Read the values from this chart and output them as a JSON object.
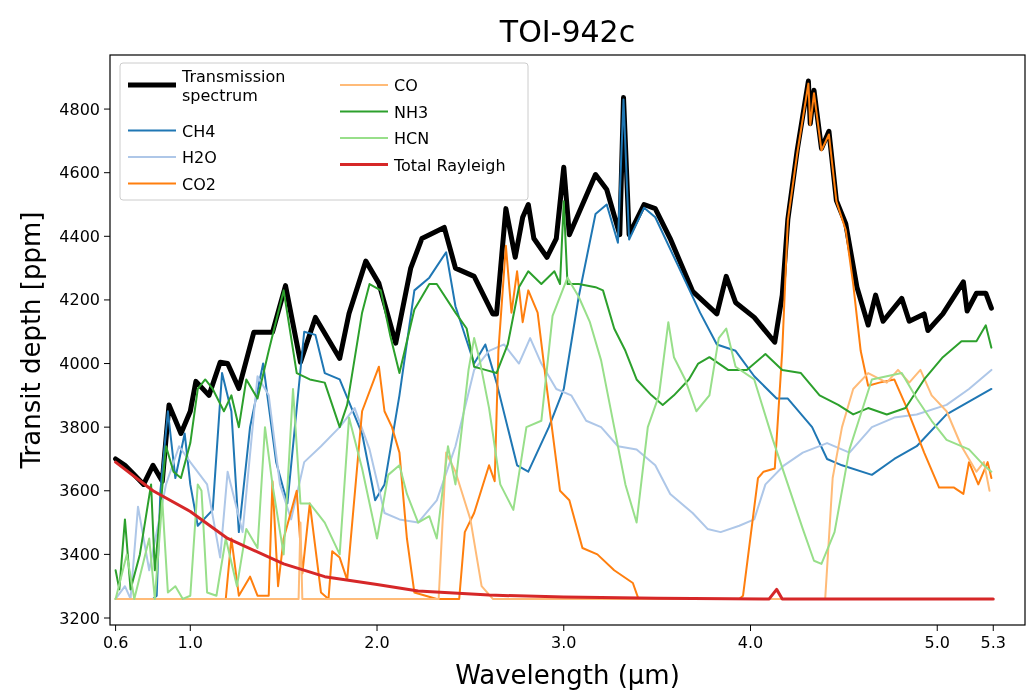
{
  "chart_data": {
    "type": "line",
    "title": "TOI-942c",
    "xlabel": "Wavelength (μm)",
    "ylabel": "Transit depth [ppm]",
    "xlim": [
      0.57,
      5.47
    ],
    "ylim": [
      3178,
      4970
    ],
    "xticks": [
      0.6,
      {
        "value": 1,
        "label": "1.0"
      },
      {
        "value": 2,
        "label": "2.0"
      },
      {
        "value": 3,
        "label": "3.0"
      },
      {
        "value": 4,
        "label": "4.0"
      },
      {
        "value": 5,
        "label": "5.0"
      },
      5.3
    ],
    "yticks": [
      3200,
      3400,
      3600,
      3800,
      4000,
      4200,
      4400,
      4600,
      4800
    ],
    "grid": false,
    "legend": "top left",
    "line_style": "solid",
    "marker": "none",
    "series": [
      {
        "name": "Transmission\nspectrum",
        "color": "#000000",
        "x": [
          0.6,
          0.65,
          0.7,
          0.75,
          0.8,
          0.85,
          0.886,
          0.95,
          1.0,
          1.03,
          1.1,
          1.16,
          1.2,
          1.26,
          1.34,
          1.44,
          1.51,
          1.59,
          1.67,
          1.8,
          1.85,
          1.94,
          2.01,
          2.1,
          2.18,
          2.24,
          2.36,
          2.42,
          2.52,
          2.62,
          2.64,
          2.69,
          2.74,
          2.78,
          2.81,
          2.84,
          2.91,
          2.96,
          3.0,
          3.03,
          3.17,
          3.23,
          3.3,
          3.32,
          3.35,
          3.43,
          3.49,
          3.57,
          3.69,
          3.82,
          3.87,
          3.92,
          4.02,
          4.13,
          4.17,
          4.2,
          4.25,
          4.31,
          4.32,
          4.34,
          4.38,
          4.42,
          4.46,
          4.51,
          4.57,
          4.63,
          4.67,
          4.71,
          4.81,
          4.85,
          4.93,
          4.95,
          5.03,
          5.14,
          5.16,
          5.21,
          5.26,
          5.29
        ],
        "values": [
          3700,
          3680,
          3650,
          3620,
          3680,
          3630,
          3870,
          3780,
          3850,
          3944,
          3900,
          4004,
          4000,
          3922,
          4098,
          4098,
          4245,
          4004,
          4145,
          4016,
          4157,
          4322,
          4252,
          4064,
          4299,
          4393,
          4428,
          4300,
          4274,
          4156,
          4156,
          4487,
          4334,
          4460,
          4500,
          4393,
          4334,
          4393,
          4617,
          4405,
          4594,
          4547,
          4405,
          4836,
          4405,
          4500,
          4487,
          4393,
          4227,
          4156,
          4274,
          4192,
          4145,
          4067,
          4215,
          4453,
          4670,
          4888,
          4754,
          4859,
          4676,
          4730,
          4512,
          4440,
          4240,
          4121,
          4215,
          4133,
          4205,
          4133,
          4156,
          4104,
          4156,
          4257,
          4165,
          4221,
          4221,
          4174
        ]
      },
      {
        "name": "CH4",
        "color": "#1f77b4",
        "x": [
          0.8,
          0.82,
          0.84,
          0.88,
          0.92,
          0.97,
          1.0,
          1.04,
          1.12,
          1.17,
          1.22,
          1.26,
          1.32,
          1.39,
          1.46,
          1.52,
          1.61,
          1.67,
          1.72,
          1.8,
          1.92,
          1.99,
          2.04,
          2.12,
          2.2,
          2.28,
          2.37,
          2.42,
          2.52,
          2.58,
          2.64,
          2.75,
          2.81,
          2.92,
          3.0,
          3.08,
          3.17,
          3.23,
          3.29,
          3.32,
          3.35,
          3.43,
          3.49,
          3.61,
          3.73,
          3.82,
          3.92,
          4.02,
          4.14,
          4.2,
          4.33,
          4.41,
          4.49,
          4.65,
          4.77,
          4.89,
          5.05,
          5.17,
          5.29
        ],
        "values": [
          3260,
          3270,
          3600,
          3850,
          3640,
          3780,
          3620,
          3490,
          3540,
          3970,
          3850,
          3470,
          3800,
          4000,
          3690,
          3560,
          4100,
          4090,
          3970,
          3950,
          3780,
          3570,
          3620,
          3900,
          4230,
          4270,
          4350,
          4180,
          4000,
          4060,
          3940,
          3680,
          3660,
          3800,
          3920,
          4210,
          4470,
          4500,
          4380,
          4830,
          4390,
          4490,
          4460,
          4310,
          4160,
          4060,
          4040,
          3960,
          3890,
          3890,
          3800,
          3700,
          3680,
          3650,
          3700,
          3740,
          3840,
          3880,
          3920
        ]
      },
      {
        "name": "H2O",
        "color": "#aec7e8",
        "x": [
          0.6,
          0.65,
          0.68,
          0.72,
          0.78,
          0.87,
          0.94,
          1.0,
          1.09,
          1.16,
          1.2,
          1.28,
          1.36,
          1.42,
          1.48,
          1.54,
          1.61,
          1.7,
          1.8,
          1.88,
          1.96,
          2.04,
          2.12,
          2.22,
          2.32,
          2.42,
          2.52,
          2.6,
          2.68,
          2.76,
          2.82,
          2.88,
          2.96,
          3.04,
          3.12,
          3.2,
          3.29,
          3.39,
          3.49,
          3.57,
          3.69,
          3.77,
          3.84,
          3.94,
          4.02,
          4.08,
          4.18,
          4.28,
          4.41,
          4.53,
          4.65,
          4.77,
          4.89,
          5.05,
          5.17,
          5.29
        ],
        "values": [
          3260,
          3300,
          3260,
          3550,
          3350,
          3620,
          3740,
          3690,
          3620,
          3390,
          3660,
          3470,
          3960,
          3900,
          3620,
          3510,
          3690,
          3740,
          3800,
          3860,
          3730,
          3530,
          3510,
          3500,
          3570,
          3740,
          3980,
          4040,
          4060,
          4000,
          4080,
          4000,
          3920,
          3900,
          3820,
          3800,
          3740,
          3730,
          3680,
          3590,
          3530,
          3480,
          3470,
          3490,
          3510,
          3620,
          3680,
          3720,
          3750,
          3720,
          3800,
          3830,
          3840,
          3870,
          3920,
          3980
        ]
      },
      {
        "name": "CO2",
        "color": "#ff7f0e",
        "x": [
          0.6,
          1.19,
          1.22,
          1.26,
          1.32,
          1.36,
          1.42,
          1.44,
          1.47,
          1.5,
          1.57,
          1.6,
          1.64,
          1.7,
          1.74,
          1.76,
          1.8,
          1.84,
          1.92,
          2.01,
          2.04,
          2.08,
          2.12,
          2.16,
          2.2,
          2.32,
          2.44,
          2.47,
          2.52,
          2.6,
          2.63,
          2.65,
          2.69,
          2.72,
          2.75,
          2.78,
          2.81,
          2.86,
          2.91,
          2.98,
          3.03,
          3.1,
          3.18,
          3.27,
          3.37,
          3.4,
          3.94,
          3.96,
          4.04,
          4.07,
          4.13,
          4.17,
          4.2,
          4.25,
          4.31,
          4.32,
          4.34,
          4.38,
          4.42,
          4.46,
          4.51,
          4.55,
          4.59,
          4.63,
          4.69,
          4.77,
          4.83,
          4.93,
          5.01,
          5.09,
          5.14,
          5.17,
          5.22,
          5.27,
          5.29
        ],
        "values": [
          3260,
          3260,
          3450,
          3270,
          3330,
          3270,
          3270,
          3630,
          3300,
          3450,
          3600,
          3340,
          3560,
          3280,
          3260,
          3410,
          3390,
          3320,
          3850,
          3990,
          3850,
          3800,
          3720,
          3450,
          3280,
          3260,
          3260,
          3470,
          3530,
          3680,
          3630,
          4040,
          4370,
          4160,
          4290,
          4130,
          4230,
          4160,
          3920,
          3600,
          3570,
          3420,
          3400,
          3350,
          3310,
          3260,
          3260,
          3270,
          3640,
          3660,
          3670,
          4040,
          4450,
          4660,
          4880,
          4750,
          4850,
          4670,
          4720,
          4510,
          4420,
          4250,
          4040,
          3930,
          3940,
          3950,
          3870,
          3720,
          3610,
          3610,
          3590,
          3690,
          3620,
          3690,
          3640
        ]
      },
      {
        "name": "CO",
        "color": "#ffbb78",
        "x": [
          0.6,
          1.58,
          1.59,
          1.6,
          2.33,
          2.37,
          2.42,
          2.5,
          2.56,
          2.62,
          4.4,
          4.44,
          4.49,
          4.55,
          4.63,
          4.73,
          4.79,
          4.85,
          4.91,
          4.97,
          5.05,
          5.13,
          5.21,
          5.25,
          5.28
        ],
        "values": [
          3260,
          3260,
          3500,
          3260,
          3260,
          3720,
          3660,
          3510,
          3300,
          3260,
          3260,
          3640,
          3800,
          3920,
          3970,
          3940,
          3980,
          3940,
          3980,
          3900,
          3850,
          3740,
          3660,
          3690,
          3600
        ]
      },
      {
        "name": "NH3",
        "color": "#2ca02c",
        "x": [
          0.6,
          0.62,
          0.65,
          0.68,
          0.73,
          0.79,
          0.81,
          0.87,
          0.91,
          0.95,
          1.0,
          1.04,
          1.08,
          1.12,
          1.18,
          1.22,
          1.26,
          1.3,
          1.36,
          1.42,
          1.5,
          1.57,
          1.64,
          1.72,
          1.8,
          1.84,
          1.92,
          1.96,
          2.02,
          2.07,
          2.12,
          2.2,
          2.28,
          2.32,
          2.42,
          2.48,
          2.52,
          2.58,
          2.64,
          2.7,
          2.76,
          2.81,
          2.88,
          2.95,
          2.98,
          3.0,
          3.02,
          3.08,
          3.17,
          3.21,
          3.27,
          3.33,
          3.39,
          3.47,
          3.53,
          3.59,
          3.67,
          3.72,
          3.78,
          3.88,
          3.98,
          4.08,
          4.17,
          4.27,
          4.37,
          4.47,
          4.55,
          4.63,
          4.73,
          4.83,
          4.93,
          5.03,
          5.13,
          5.21,
          5.26,
          5.29
        ],
        "values": [
          3350,
          3290,
          3510,
          3290,
          3400,
          3620,
          3350,
          3740,
          3660,
          3640,
          3750,
          3920,
          3950,
          3920,
          3850,
          3900,
          3800,
          3950,
          3890,
          4040,
          4230,
          3970,
          3950,
          3940,
          3800,
          3870,
          4160,
          4250,
          4230,
          4090,
          3970,
          4170,
          4250,
          4250,
          4160,
          4110,
          3990,
          3980,
          3970,
          4060,
          4240,
          4290,
          4250,
          4290,
          4250,
          4510,
          4250,
          4250,
          4240,
          4230,
          4110,
          4040,
          3950,
          3900,
          3870,
          3900,
          3950,
          4000,
          4020,
          3980,
          3980,
          4030,
          3980,
          3970,
          3900,
          3870,
          3840,
          3860,
          3840,
          3860,
          3950,
          4020,
          4070,
          4070,
          4120,
          4050
        ]
      },
      {
        "name": "HCN",
        "color": "#98df8a",
        "x": [
          0.6,
          0.66,
          0.7,
          0.78,
          0.81,
          0.85,
          0.88,
          0.92,
          0.96,
          1.0,
          1.04,
          1.06,
          1.09,
          1.14,
          1.19,
          1.25,
          1.3,
          1.36,
          1.4,
          1.44,
          1.5,
          1.55,
          1.59,
          1.64,
          1.72,
          1.8,
          1.85,
          1.92,
          2.0,
          2.06,
          2.12,
          2.16,
          2.22,
          2.28,
          2.32,
          2.38,
          2.42,
          2.49,
          2.52,
          2.55,
          2.6,
          2.66,
          2.73,
          2.8,
          2.88,
          2.94,
          3.02,
          3.08,
          3.14,
          3.2,
          3.27,
          3.33,
          3.39,
          3.45,
          3.51,
          3.56,
          3.59,
          3.65,
          3.71,
          3.78,
          3.83,
          3.87,
          3.92,
          4.02,
          4.12,
          4.2,
          4.28,
          4.34,
          4.38,
          4.45,
          4.53,
          4.59,
          4.65,
          4.73,
          4.81,
          4.89,
          4.97,
          5.05,
          5.17,
          5.25,
          5.29
        ],
        "values": [
          3260,
          3400,
          3260,
          3450,
          3260,
          3570,
          3280,
          3300,
          3260,
          3270,
          3620,
          3600,
          3280,
          3270,
          3450,
          3300,
          3480,
          3420,
          3800,
          3620,
          3400,
          3920,
          3560,
          3560,
          3500,
          3400,
          3830,
          3670,
          3450,
          3650,
          3680,
          3590,
          3500,
          3520,
          3450,
          3740,
          3620,
          3980,
          4080,
          4010,
          3860,
          3620,
          3540,
          3800,
          3820,
          4150,
          4270,
          4210,
          4130,
          4010,
          3800,
          3620,
          3500,
          3800,
          3900,
          4130,
          4020,
          3950,
          3850,
          3900,
          4080,
          4110,
          3990,
          3950,
          3760,
          3620,
          3480,
          3380,
          3370,
          3470,
          3730,
          3840,
          3950,
          3960,
          3970,
          3890,
          3820,
          3760,
          3730,
          3680,
          3660
        ]
      },
      {
        "name": "Total Rayleigh",
        "color": "#d62728",
        "x": [
          0.6,
          0.8,
          1.0,
          1.2,
          1.5,
          1.72,
          2.0,
          2.22,
          2.6,
          3.0,
          3.5,
          4.1,
          4.14,
          4.17,
          5.3
        ],
        "values": [
          3690,
          3600,
          3535,
          3450,
          3370,
          3330,
          3305,
          3285,
          3272,
          3266,
          3262,
          3260,
          3290,
          3260,
          3260
        ]
      }
    ]
  }
}
